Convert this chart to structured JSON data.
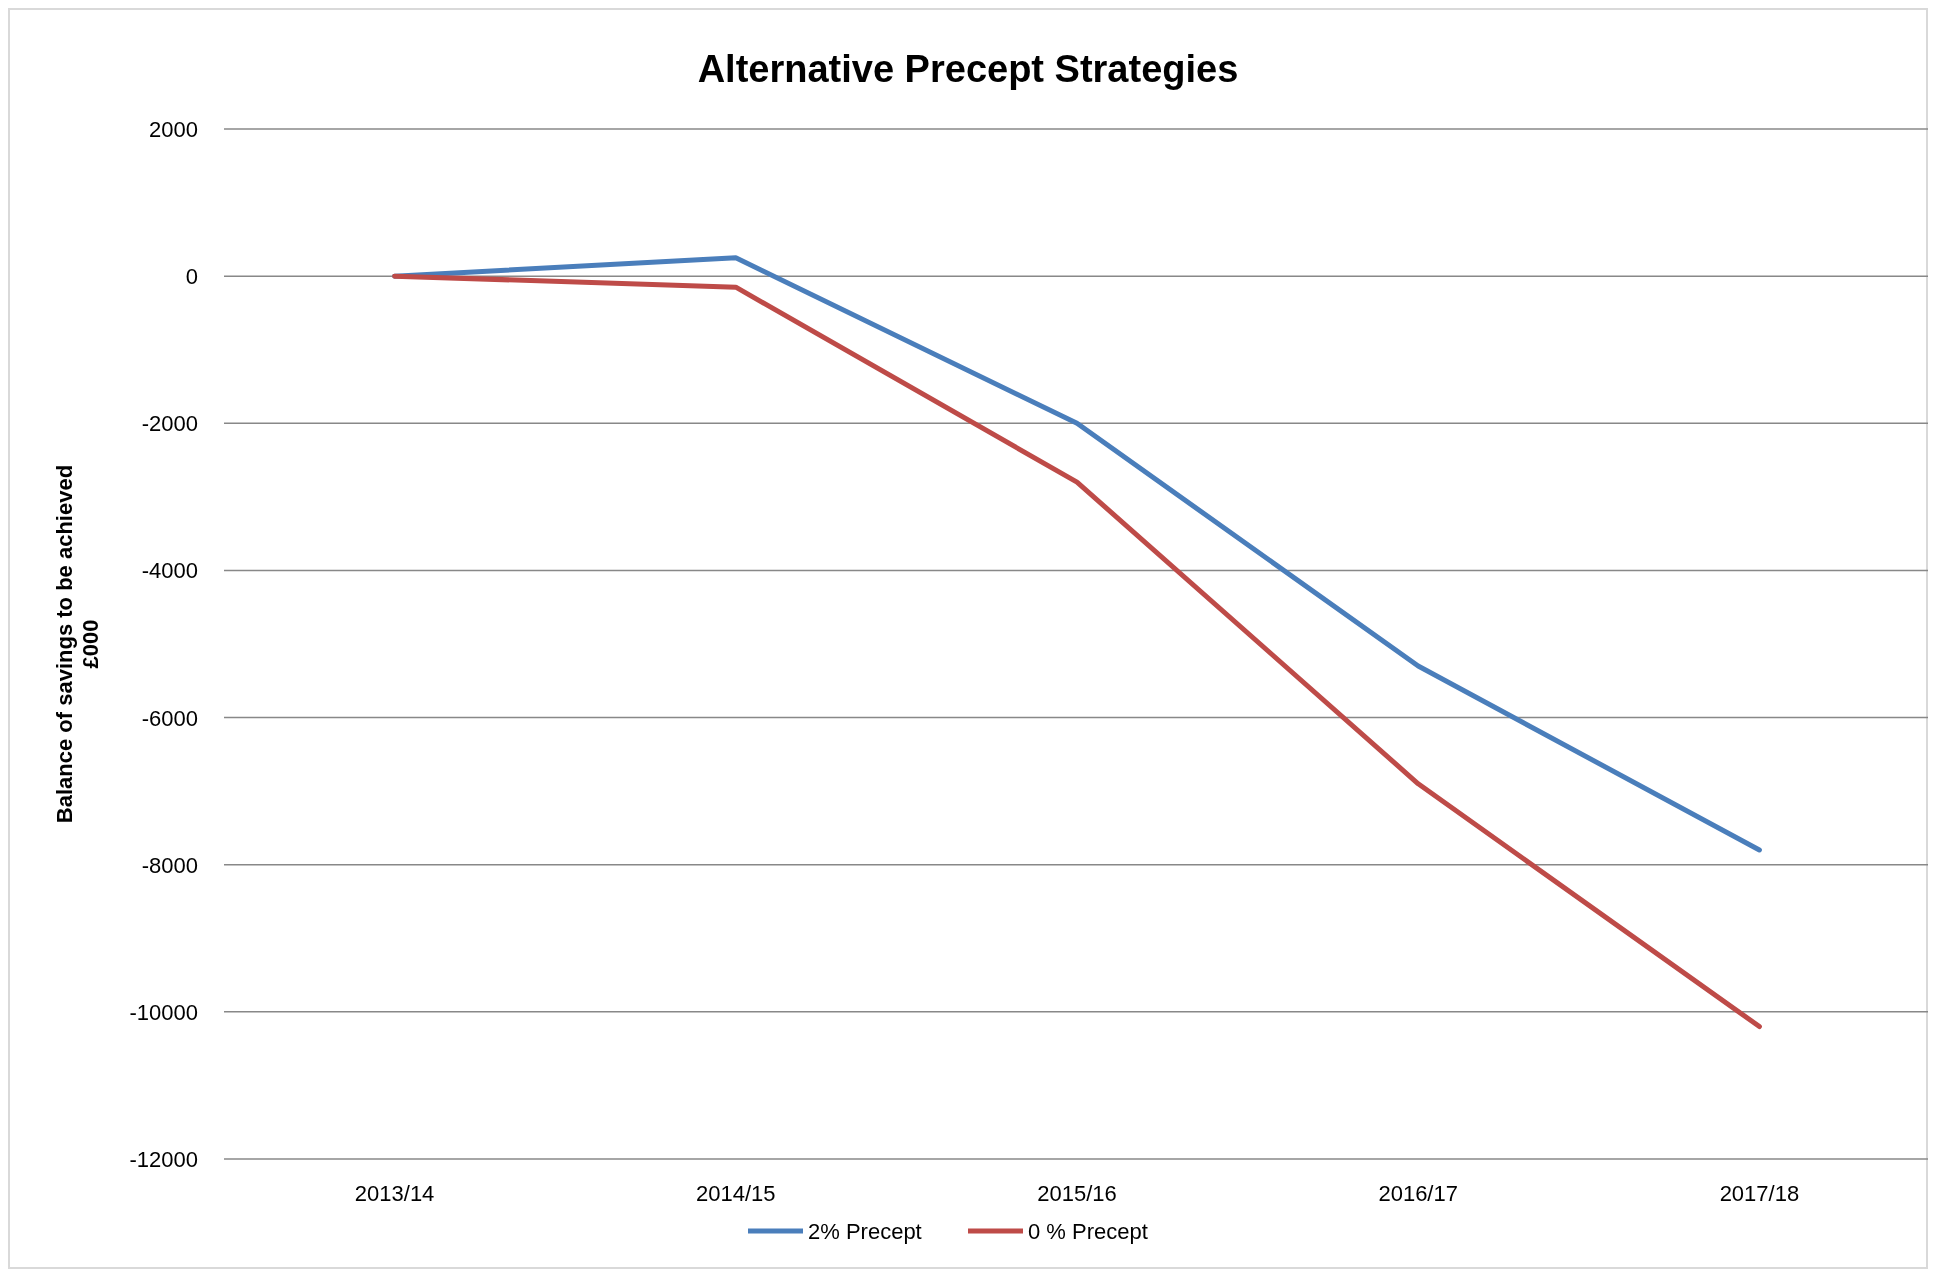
{
  "chart_data": {
    "type": "line",
    "title": "Alternative Precept Strategies",
    "ylabel": "Balance of savings to be achieved\n£000",
    "categories": [
      "2013/14",
      "2014/15",
      "2015/16",
      "2016/17",
      "2017/18"
    ],
    "series": [
      {
        "name": "2% Precept",
        "color": "#4a7ebb",
        "values": [
          0,
          250,
          -2000,
          -5300,
          -7800
        ]
      },
      {
        "name": "0 % Precept",
        "color": "#be4b48",
        "values": [
          0,
          -150,
          -2800,
          -6900,
          -10200
        ]
      }
    ],
    "ylim": [
      -12000,
      2000
    ],
    "yticks": [
      -12000,
      -10000,
      -8000,
      -6000,
      -4000,
      -2000,
      0,
      2000
    ],
    "grid": "y",
    "legend": "bottom",
    "marker": "none",
    "line_style": "solid"
  }
}
